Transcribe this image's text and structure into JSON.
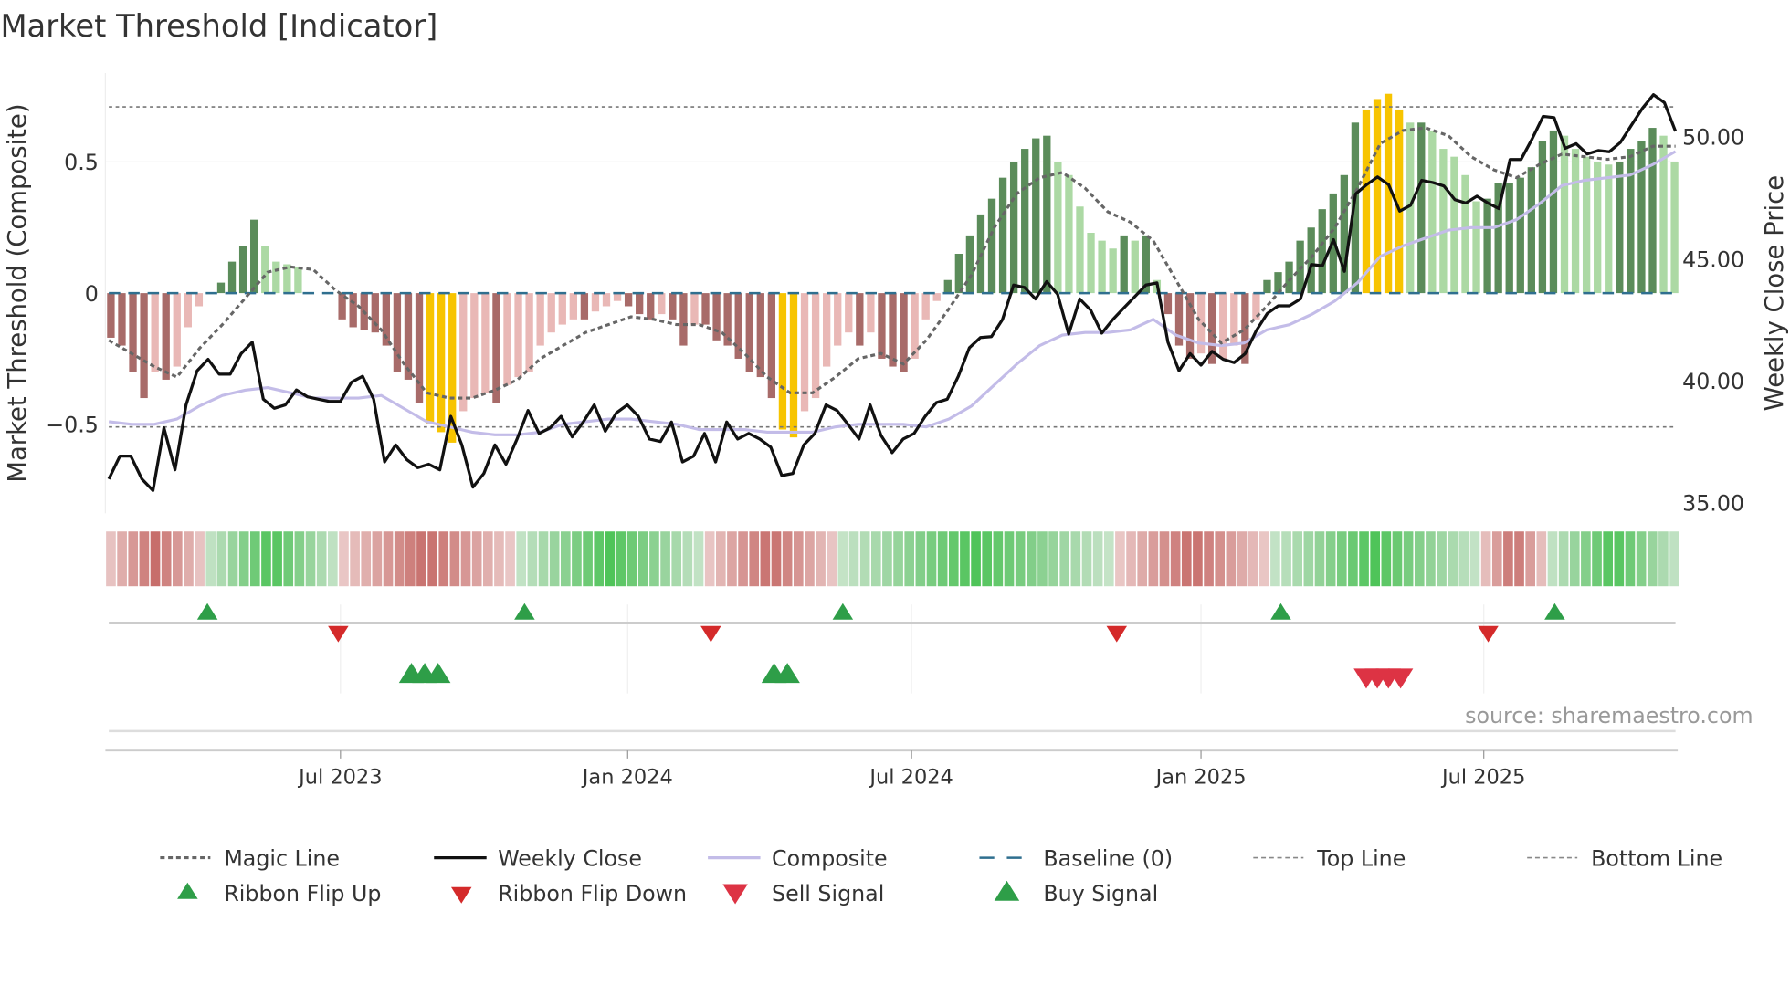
{
  "chart_data": {
    "type": "bar",
    "title": "Market Threshold [Indicator]",
    "ylabel_left": "Market Threshold (Composite)",
    "ylabel_right": "Weekly Close Price",
    "source": "source: sharemaestro.com",
    "left_axis": {
      "ylim": [
        -0.8,
        0.8
      ],
      "ticks": [
        0.5,
        0,
        -0.5
      ],
      "tick_labels": [
        "0.5",
        "0",
        "−0.5"
      ]
    },
    "right_axis": {
      "ylim": [
        34.3,
        51.9
      ],
      "ticks": [
        50,
        45,
        40,
        35
      ],
      "tick_labels": [
        "50.00",
        "45.00",
        "40.00",
        "35.00"
      ]
    },
    "x_axis": {
      "unit": "week index",
      "range": [
        0,
        142
      ],
      "ticks": [
        21.2,
        47.1,
        72.7,
        98.8,
        124.3
      ],
      "tick_labels": [
        "Jul 2023",
        "Jan 2024",
        "Jul 2024",
        "Jan 2025",
        "Jul 2025"
      ]
    },
    "top_line": 0.71,
    "bottom_line": -0.51,
    "baseline": 0,
    "colors": {
      "bull_rising": "#5b8c5a",
      "bull_falling": "#acd9a4",
      "bear_falling": "#a86b69",
      "bear_rising": "#e9b8b6",
      "extreme": "#f7c400",
      "weekly_close": "#111111",
      "composite": "#c3bce8",
      "magic": "#666666",
      "baseline": "#2f6f8f",
      "buy": "#2e9e48",
      "sell": "#dd3344",
      "flip_up": "#2e9e48",
      "flip_down": "#d42a2a"
    },
    "composite_bars": [
      -0.17,
      -0.2,
      -0.3,
      -0.4,
      -0.3,
      -0.33,
      -0.28,
      -0.13,
      -0.05,
      0,
      0.04,
      0.12,
      0.18,
      0.28,
      0.18,
      0.12,
      0.11,
      0.1,
      0,
      0,
      0,
      -0.1,
      -0.13,
      -0.14,
      -0.15,
      -0.2,
      -0.3,
      -0.33,
      -0.42,
      -0.5,
      -0.53,
      -0.57,
      -0.45,
      -0.4,
      -0.38,
      -0.42,
      -0.35,
      -0.32,
      -0.3,
      -0.2,
      -0.15,
      -0.12,
      -0.1,
      -0.1,
      -0.07,
      -0.05,
      -0.03,
      -0.05,
      -0.08,
      -0.1,
      -0.08,
      -0.1,
      -0.2,
      -0.12,
      -0.12,
      -0.18,
      -0.2,
      -0.25,
      -0.3,
      -0.32,
      -0.4,
      -0.52,
      -0.55,
      -0.45,
      -0.4,
      -0.28,
      -0.2,
      -0.15,
      -0.2,
      -0.15,
      -0.25,
      -0.28,
      -0.3,
      -0.25,
      -0.1,
      -0.03,
      0.05,
      0.15,
      0.22,
      0.3,
      0.36,
      0.44,
      0.5,
      0.55,
      0.59,
      0.6,
      0.5,
      0.45,
      0.33,
      0.23,
      0.2,
      0.17,
      0.22,
      0.2,
      0.22,
      0.05,
      -0.08,
      -0.2,
      -0.25,
      -0.23,
      -0.27,
      -0.25,
      -0.2,
      -0.27,
      -0.1,
      0.05,
      0.08,
      0.12,
      0.2,
      0.25,
      0.32,
      0.38,
      0.45,
      0.65,
      0.7,
      0.74,
      0.76,
      0.7,
      0.65,
      0.65,
      0.62,
      0.55,
      0.52,
      0.45,
      0.35,
      0.36,
      0.42,
      0.42,
      0.44,
      0.48,
      0.58,
      0.62,
      0.6,
      0.55,
      0.52,
      0.5,
      0.49,
      0.5,
      0.55,
      0.58,
      0.63,
      0.6,
      0.5
    ],
    "weekly_close": [
      35.98,
      36.92,
      36.92,
      35.98,
      35.51,
      38.08,
      36.36,
      39.02,
      40.42,
      40.89,
      40.28,
      40.28,
      41.12,
      41.59,
      39.25,
      38.88,
      39.02,
      39.63,
      39.35,
      39.25,
      39.16,
      39.16,
      39.95,
      40.19,
      39.25,
      36.68,
      37.38,
      36.78,
      36.45,
      36.59,
      36.36,
      38.55,
      37.38,
      35.65,
      36.21,
      37.38,
      36.59,
      37.62,
      38.79,
      37.85,
      38.08,
      38.55,
      37.71,
      38.32,
      39.02,
      37.94,
      38.69,
      39.02,
      38.55,
      37.62,
      37.52,
      38.32,
      36.68,
      36.92,
      37.85,
      36.68,
      38.32,
      37.62,
      37.85,
      37.62,
      37.29,
      36.12,
      36.21,
      37.38,
      37.85,
      39.02,
      38.79,
      38.22,
      37.62,
      39.02,
      37.76,
      37.06,
      37.62,
      37.85,
      38.55,
      39.11,
      39.25,
      40.19,
      41.36,
      41.78,
      41.82,
      42.52,
      43.93,
      43.83,
      43.36,
      44.07,
      43.55,
      41.92,
      43.36,
      42.9,
      41.96,
      42.52,
      42.99,
      43.46,
      43.93,
      44.02,
      41.59,
      40.42,
      41.12,
      40.65,
      41.21,
      40.89,
      40.75,
      41.12,
      42.06,
      42.76,
      43.08,
      43.08,
      43.36,
      44.77,
      44.72,
      45.79,
      44.49,
      47.66,
      48.04,
      48.36,
      48.04,
      46.96,
      47.2,
      48.22,
      48.13,
      47.99,
      47.43,
      47.29,
      47.57,
      47.29,
      47.06,
      49.07,
      49.07,
      49.91,
      50.84,
      50.79,
      49.53,
      49.72,
      49.3,
      49.44,
      49.39,
      49.77,
      50.47,
      51.17,
      51.73,
      51.4,
      50.23
    ],
    "magic_line": [
      -0.18,
      -0.23,
      -0.28,
      -0.32,
      -0.21,
      -0.12,
      -0.02,
      0.08,
      0.1,
      0.09,
      0.01,
      -0.05,
      -0.14,
      -0.27,
      -0.38,
      -0.4,
      -0.4,
      -0.37,
      -0.33,
      -0.25,
      -0.2,
      -0.15,
      -0.12,
      -0.09,
      -0.1,
      -0.12,
      -0.12,
      -0.15,
      -0.23,
      -0.32,
      -0.38,
      -0.38,
      -0.32,
      -0.25,
      -0.23,
      -0.27,
      -0.18,
      -0.06,
      0.07,
      0.25,
      0.38,
      0.44,
      0.46,
      0.4,
      0.31,
      0.27,
      0.2,
      0.05,
      -0.1,
      -0.19,
      -0.14,
      -0.05,
      0.05,
      0.14,
      0.25,
      0.4,
      0.57,
      0.62,
      0.63,
      0.6,
      0.52,
      0.47,
      0.44,
      0.49,
      0.53,
      0.52,
      0.51,
      0.52,
      0.56,
      0.56
    ],
    "composite_line": [
      -0.49,
      -0.5,
      -0.5,
      -0.48,
      -0.43,
      -0.39,
      -0.37,
      -0.36,
      -0.38,
      -0.4,
      -0.4,
      -0.4,
      -0.39,
      -0.44,
      -0.49,
      -0.51,
      -0.53,
      -0.54,
      -0.54,
      -0.53,
      -0.5,
      -0.49,
      -0.48,
      -0.48,
      -0.49,
      -0.5,
      -0.52,
      -0.52,
      -0.52,
      -0.53,
      -0.53,
      -0.53,
      -0.51,
      -0.5,
      -0.5,
      -0.5,
      -0.51,
      -0.48,
      -0.43,
      -0.35,
      -0.27,
      -0.2,
      -0.16,
      -0.15,
      -0.15,
      -0.14,
      -0.1,
      -0.16,
      -0.19,
      -0.2,
      -0.19,
      -0.14,
      -0.12,
      -0.08,
      -0.03,
      0.04,
      0.14,
      0.18,
      0.21,
      0.24,
      0.25,
      0.25,
      0.28,
      0.34,
      0.41,
      0.43,
      0.44,
      0.45,
      0.49,
      0.54
    ],
    "ribbon_segments": [
      {
        "state": "bear",
        "start": 0,
        "end": 9
      },
      {
        "state": "bull",
        "start": 9,
        "end": 21
      },
      {
        "state": "bear",
        "start": 21,
        "end": 37
      },
      {
        "state": "bull",
        "start": 37,
        "end": 54
      },
      {
        "state": "bear",
        "start": 54,
        "end": 66
      },
      {
        "state": "bull",
        "start": 66,
        "end": 91
      },
      {
        "state": "bear",
        "start": 91,
        "end": 105
      },
      {
        "state": "bull",
        "start": 105,
        "end": 124
      },
      {
        "state": "bear",
        "start": 124,
        "end": 130
      },
      {
        "state": "bull",
        "start": 130,
        "end": 142
      }
    ],
    "ribbon_flip_up": [
      9.2,
      37.8,
      66.5,
      106,
      130.7
    ],
    "ribbon_flip_down": [
      21,
      54.6,
      91.2,
      124.7
    ],
    "buy_signals": [
      27.6,
      28.8,
      30,
      60.3,
      61.5
    ],
    "sell_signals": [
      113.7,
      114.7,
      115.7,
      116.8
    ],
    "legend": [
      {
        "label": "Magic Line",
        "key": "magic"
      },
      {
        "label": "Weekly Close",
        "key": "close"
      },
      {
        "label": "Composite",
        "key": "composite"
      },
      {
        "label": "Baseline (0)",
        "key": "baseline"
      },
      {
        "label": "Top Line",
        "key": "top"
      },
      {
        "label": "Bottom Line",
        "key": "bottom"
      },
      {
        "label": "Ribbon Flip Up",
        "key": "flipup"
      },
      {
        "label": "Ribbon Flip Down",
        "key": "flipdown"
      },
      {
        "label": "Sell Signal",
        "key": "sell"
      },
      {
        "label": "Buy Signal",
        "key": "buy"
      }
    ]
  }
}
